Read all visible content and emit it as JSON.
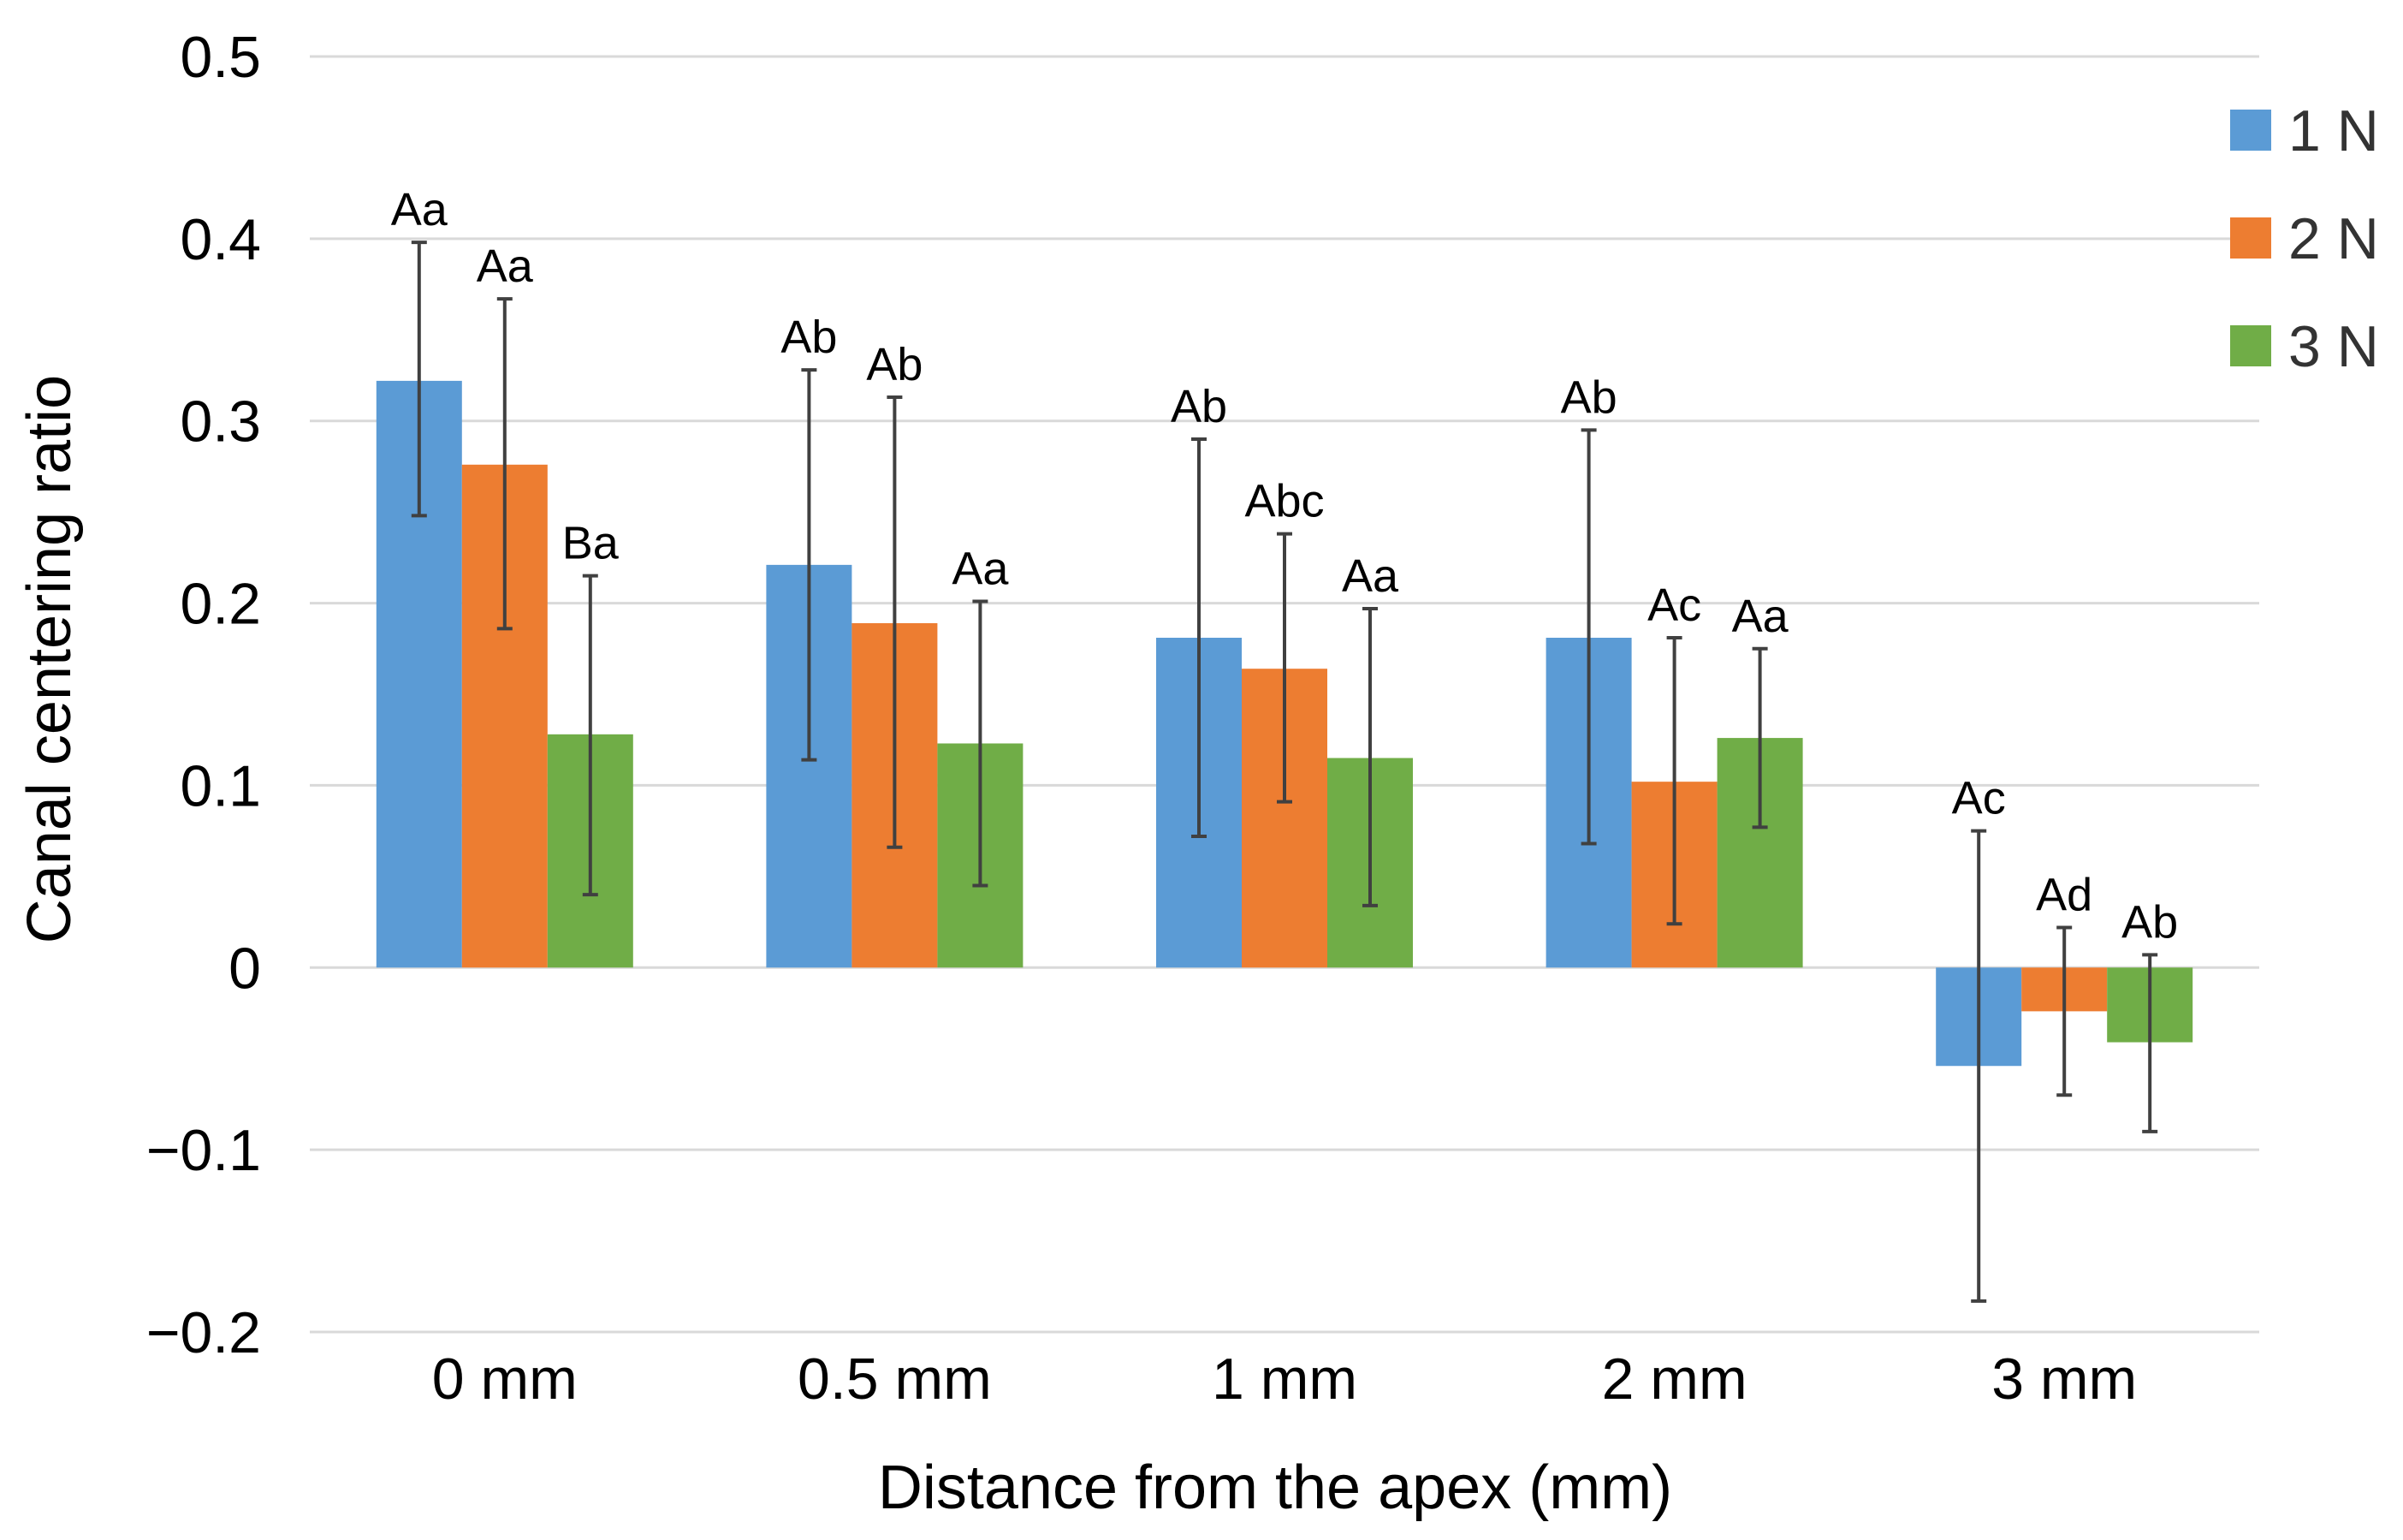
{
  "chart_data": {
    "type": "bar",
    "title": "",
    "xlabel": "Distance from the apex (mm)",
    "ylabel": "Canal centering ratio",
    "ylim": [
      -0.2,
      0.5
    ],
    "yticks": [
      {
        "value": -0.2,
        "label": "−0.2"
      },
      {
        "value": -0.1,
        "label": "−0.1"
      },
      {
        "value": 0,
        "label": "0"
      },
      {
        "value": 0.1,
        "label": "0.1"
      },
      {
        "value": 0.2,
        "label": "0.2"
      },
      {
        "value": 0.3,
        "label": "0.3"
      },
      {
        "value": 0.4,
        "label": "0.4"
      },
      {
        "value": 0.5,
        "label": "0.5"
      }
    ],
    "grid": true,
    "legend_position": "right",
    "categories": [
      "0 mm",
      "0.5 mm",
      "1 mm",
      "2 mm",
      "3 mm"
    ],
    "series": [
      {
        "name": "1 N",
        "color": "#5b9bd5",
        "values": [
          0.322,
          0.221,
          0.181,
          0.181,
          -0.054
        ],
        "error_low": [
          0.248,
          0.114,
          0.072,
          0.068,
          -0.183
        ],
        "error_high": [
          0.398,
          0.328,
          0.29,
          0.295,
          0.075
        ],
        "labels": [
          "Aa",
          "Ab",
          "Ab",
          "Ab",
          "Ac"
        ]
      },
      {
        "name": "2 N",
        "color": "#ed7d31",
        "values": [
          0.276,
          0.189,
          0.164,
          0.102,
          -0.024
        ],
        "error_low": [
          0.186,
          0.066,
          0.091,
          0.024,
          -0.07
        ],
        "error_high": [
          0.367,
          0.313,
          0.238,
          0.181,
          0.022
        ],
        "labels": [
          "Aa",
          "Ab",
          "Abc",
          "Ac",
          "Ad"
        ]
      },
      {
        "name": "3 N",
        "color": "#70ad47",
        "values": [
          0.128,
          0.123,
          0.115,
          0.126,
          -0.041
        ],
        "error_low": [
          0.04,
          0.045,
          0.034,
          0.077,
          -0.09
        ],
        "error_high": [
          0.215,
          0.201,
          0.197,
          0.175,
          0.007
        ],
        "labels": [
          "Ba",
          "Aa",
          "Aa",
          "Aa",
          "Ab"
        ]
      }
    ]
  }
}
